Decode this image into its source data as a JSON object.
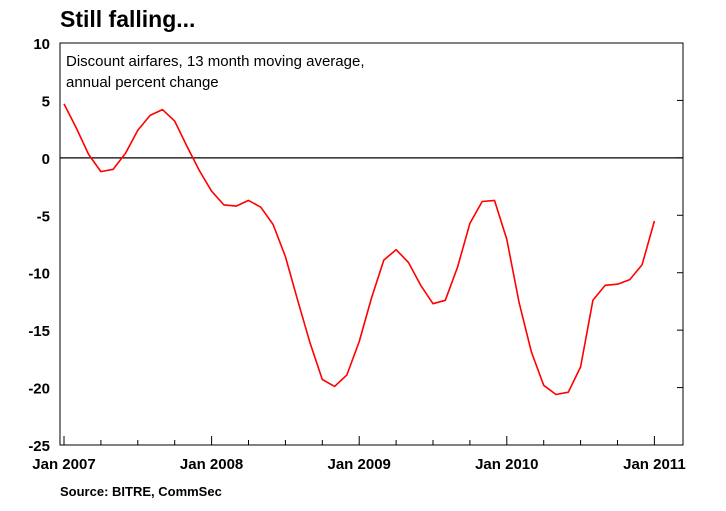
{
  "title": "Still falling...",
  "source": "Source: BITRE, CommSec",
  "chart_data": {
    "type": "line",
    "subtitle_lines": [
      "Discount airfares, 13 month moving average,",
      "annual percent change"
    ],
    "ylim": [
      -25,
      10
    ],
    "yticks": [
      10,
      5,
      0,
      -5,
      -10,
      -15,
      -20,
      -25
    ],
    "xticks": [
      {
        "label": "Jan 2007",
        "month": 0
      },
      {
        "label": "Jan 2008",
        "month": 12
      },
      {
        "label": "Jan 2009",
        "month": 24
      },
      {
        "label": "Jan 2010",
        "month": 36
      },
      {
        "label": "Jan 2011",
        "month": 48
      }
    ],
    "xlim_months": [
      0,
      50
    ],
    "zero_line": true,
    "series": [
      {
        "color": "#ff0000",
        "x": [
          0,
          1,
          2,
          3,
          4,
          5,
          6,
          7,
          8,
          9,
          10,
          11,
          12,
          13,
          14,
          15,
          16,
          17,
          18,
          19,
          20,
          21,
          22,
          23,
          24,
          25,
          26,
          27,
          28,
          29,
          30,
          31,
          32,
          33,
          34,
          35,
          36,
          37,
          38,
          39,
          40,
          41,
          42,
          43,
          44,
          45,
          46,
          47,
          48
        ],
        "values": [
          4.7,
          2.6,
          0.3,
          -1.2,
          -1.0,
          0.4,
          2.4,
          3.7,
          4.2,
          3.2,
          1.0,
          -1.1,
          -2.9,
          -4.1,
          -4.2,
          -3.7,
          -4.3,
          -5.8,
          -8.6,
          -12.4,
          -16.1,
          -19.3,
          -19.9,
          -18.9,
          -16.0,
          -12.2,
          -8.9,
          -8.0,
          -9.1,
          -11.1,
          -12.7,
          -12.4,
          -9.5,
          -5.7,
          -3.8,
          -3.7,
          -7.1,
          -12.6,
          -16.9,
          -19.8,
          -20.6,
          -20.4,
          -18.2,
          -12.4,
          -11.1,
          -11.0,
          -10.6,
          -9.3,
          -5.5
        ]
      }
    ]
  }
}
